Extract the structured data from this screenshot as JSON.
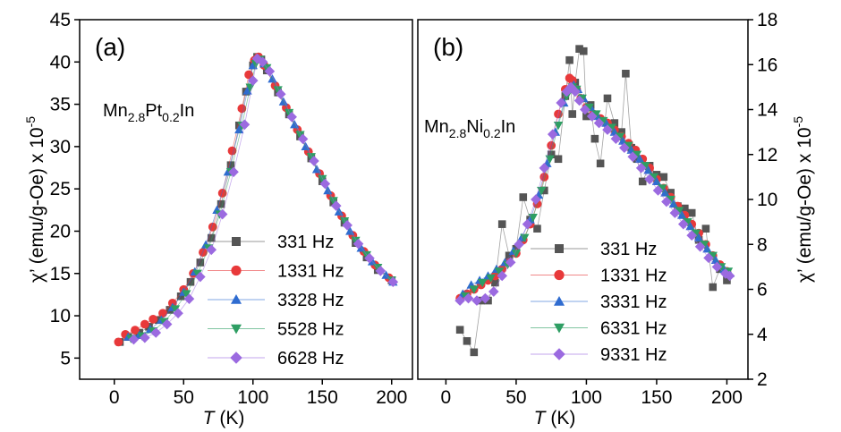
{
  "chart_data": [
    {
      "type": "scatter",
      "panel_label": "(a)",
      "sample": {
        "base1": "Mn",
        "sub1": "2.8",
        "base2": "Pt",
        "sub2": "0.2",
        "base3": "In"
      },
      "xlabel": {
        "symbol": "T",
        "unit": " (K)"
      },
      "ylabel": {
        "prefix": "χ’ (emu/g-Oe) x 10",
        "exponent": "-5"
      },
      "xlim": [
        -25,
        215
      ],
      "ylim": [
        2.5,
        45
      ],
      "xticks": [
        0,
        50,
        100,
        150,
        200
      ],
      "yticks": [
        5,
        10,
        15,
        20,
        25,
        30,
        35,
        40,
        45
      ],
      "legend_position": "bottom-right",
      "series": [
        {
          "name": "331 Hz",
          "marker": "square",
          "color": "#555555",
          "x": [
            4,
            10,
            18,
            25,
            32,
            40,
            48,
            55,
            62,
            70,
            77,
            84,
            90,
            95,
            100,
            103,
            106,
            110,
            118,
            126,
            134,
            142,
            150,
            158,
            166,
            174,
            182,
            190,
            200
          ],
          "y": [
            6.9,
            7.5,
            8.0,
            8.7,
            9.5,
            10.7,
            12.3,
            14.0,
            16.3,
            19.2,
            23.2,
            27.8,
            32.5,
            36.5,
            39.6,
            40.6,
            40.3,
            39.0,
            36.4,
            33.8,
            31.2,
            28.6,
            25.9,
            23.4,
            21.0,
            18.6,
            16.9,
            15.4,
            14.2
          ]
        },
        {
          "name": "1331 Hz",
          "marker": "circle",
          "color": "#e8393a",
          "x": [
            3,
            8,
            15,
            22,
            28,
            35,
            42,
            50,
            57,
            64,
            71,
            78,
            85,
            92,
            97,
            101,
            104,
            108,
            116,
            124,
            132,
            140,
            148,
            156,
            164,
            172,
            180,
            188,
            198
          ],
          "y": [
            6.9,
            7.8,
            8.3,
            9.0,
            9.6,
            10.3,
            11.5,
            13.1,
            15.0,
            17.5,
            20.5,
            24.5,
            29.5,
            34.5,
            38.5,
            40.2,
            40.6,
            39.6,
            37.2,
            34.6,
            32.0,
            29.4,
            26.8,
            24.2,
            21.8,
            19.5,
            17.6,
            16.0,
            14.5
          ]
        },
        {
          "name": "3328 Hz",
          "marker": "triangle-up",
          "color": "#2f6cd0",
          "x": [
            10,
            18,
            26,
            34,
            42,
            50,
            58,
            66,
            74,
            82,
            90,
            96,
            100,
            104,
            108,
            114,
            122,
            130,
            138,
            146,
            154,
            162,
            170,
            178,
            186,
            196,
            201
          ],
          "y": [
            7.5,
            7.7,
            8.4,
            9.5,
            11.0,
            12.8,
            15.2,
            18.4,
            22.5,
            27.0,
            32.0,
            36.6,
            39.6,
            40.4,
            39.8,
            38.0,
            35.3,
            32.6,
            30.0,
            27.3,
            24.8,
            22.3,
            20.0,
            18.0,
            16.4,
            14.8,
            14.0
          ]
        },
        {
          "name": "5528 Hz",
          "marker": "triangle-down",
          "color": "#2e9e63",
          "x": [
            12,
            20,
            28,
            36,
            44,
            52,
            60,
            68,
            76,
            84,
            92,
            98,
            102,
            105,
            110,
            118,
            126,
            134,
            142,
            150,
            158,
            166,
            174,
            182,
            190,
            200
          ],
          "y": [
            7.3,
            7.6,
            8.2,
            9.3,
            10.8,
            12.6,
            15.0,
            18.0,
            22.0,
            27.0,
            32.5,
            37.0,
            39.8,
            40.3,
            39.3,
            36.7,
            34.0,
            31.4,
            28.8,
            26.2,
            23.6,
            21.2,
            18.9,
            17.2,
            15.7,
            14.2
          ]
        },
        {
          "name": "6628 Hz",
          "marker": "diamond",
          "color": "#9b6ae0",
          "x": [
            14,
            22,
            30,
            38,
            46,
            54,
            62,
            70,
            78,
            86,
            94,
            100,
            103,
            107,
            112,
            120,
            128,
            136,
            144,
            152,
            160,
            168,
            176,
            184,
            192,
            201
          ],
          "y": [
            7.2,
            7.4,
            8.0,
            9.0,
            10.3,
            12.0,
            14.6,
            17.8,
            22.0,
            27.0,
            32.6,
            37.8,
            40.4,
            40.0,
            38.9,
            36.2,
            33.5,
            30.9,
            28.3,
            25.6,
            23.0,
            20.7,
            18.5,
            16.8,
            15.3,
            14.0
          ]
        }
      ]
    },
    {
      "type": "scatter",
      "panel_label": "(b)",
      "sample": {
        "base1": "Mn",
        "sub1": "2.8",
        "base2": "Ni",
        "sub2": "0.2",
        "base3": "In"
      },
      "xlabel": {
        "symbol": "T",
        "unit": " (K)"
      },
      "ylabel": {
        "prefix": "χ’ (emu/g-Oe) x 10",
        "exponent": "-5"
      },
      "xlim": [
        -20,
        215
      ],
      "ylim": [
        2,
        18
      ],
      "xticks": [
        0,
        50,
        100,
        150,
        200
      ],
      "yticks": [
        2,
        4,
        6,
        8,
        10,
        12,
        14,
        16,
        18
      ],
      "legend_position": "bottom-left",
      "series": [
        {
          "name": "331 Hz",
          "marker": "square",
          "color": "#555555",
          "x": [
            10,
            15,
            20,
            25,
            30,
            35,
            40,
            45,
            50,
            55,
            60,
            65,
            70,
            75,
            80,
            85,
            88,
            90,
            92,
            95,
            98,
            100,
            103,
            106,
            110,
            115,
            120,
            125,
            128,
            132,
            136,
            140,
            145,
            150,
            155,
            160,
            165,
            170,
            175,
            180,
            185,
            190,
            195,
            200
          ],
          "y": [
            4.2,
            3.7,
            3.2,
            5.5,
            5.5,
            6.3,
            8.9,
            7.5,
            7.8,
            10.1,
            9.1,
            8.7,
            10.4,
            12.0,
            11.8,
            14.6,
            16.2,
            13.8,
            15.2,
            16.7,
            16.6,
            13.7,
            14.2,
            12.7,
            11.6,
            14.5,
            13.4,
            13.0,
            15.6,
            12.3,
            11.8,
            10.8,
            11.5,
            11.1,
            11.0,
            10.3,
            9.7,
            9.6,
            9.4,
            8.2,
            8.7,
            6.1,
            6.9,
            6.4
          ]
        },
        {
          "name": "1331 Hz",
          "marker": "circle",
          "color": "#e8393a",
          "x": [
            10,
            15,
            20,
            25,
            30,
            35,
            40,
            45,
            50,
            55,
            60,
            65,
            70,
            75,
            80,
            85,
            88,
            90,
            93,
            96,
            100,
            105,
            110,
            115,
            120,
            125,
            130,
            135,
            140,
            145,
            150,
            155,
            160,
            165,
            170,
            175,
            180,
            185,
            190,
            195,
            200
          ],
          "y": [
            5.6,
            5.8,
            6.0,
            6.2,
            6.4,
            6.6,
            6.9,
            7.2,
            7.6,
            8.2,
            8.9,
            9.8,
            11.0,
            12.4,
            13.8,
            14.9,
            15.4,
            15.3,
            14.9,
            14.5,
            14.1,
            13.8,
            13.6,
            13.4,
            13.1,
            12.8,
            12.5,
            12.2,
            11.8,
            11.4,
            10.9,
            10.5,
            10.1,
            9.7,
            9.3,
            8.9,
            8.5,
            8.0,
            7.5,
            7.1,
            6.8
          ]
        },
        {
          "name": "3331 Hz",
          "marker": "triangle-up",
          "color": "#2f6cd0",
          "x": [
            12,
            18,
            24,
            30,
            36,
            42,
            48,
            54,
            60,
            66,
            72,
            78,
            84,
            88,
            91,
            94,
            98,
            103,
            108,
            114,
            120,
            126,
            132,
            138,
            144,
            150,
            156,
            162,
            168,
            174,
            180,
            186,
            192,
            198,
            202
          ],
          "y": [
            5.8,
            6.2,
            6.4,
            6.6,
            6.9,
            7.2,
            7.7,
            8.3,
            9.1,
            10.2,
            11.6,
            13.0,
            14.3,
            14.9,
            15.1,
            14.9,
            14.5,
            14.1,
            13.7,
            13.4,
            13.0,
            12.6,
            12.2,
            11.8,
            11.3,
            10.8,
            10.3,
            9.8,
            9.3,
            8.8,
            8.3,
            7.8,
            7.3,
            6.9,
            6.7
          ]
        },
        {
          "name": "6331 Hz",
          "marker": "triangle-down",
          "color": "#2e9e63",
          "x": [
            14,
            20,
            26,
            32,
            38,
            44,
            50,
            56,
            62,
            68,
            74,
            80,
            86,
            90,
            93,
            97,
            102,
            107,
            112,
            118,
            124,
            130,
            136,
            142,
            148,
            154,
            160,
            166,
            172,
            178,
            184,
            190,
            196,
            201
          ],
          "y": [
            5.7,
            6.0,
            6.3,
            6.5,
            6.8,
            7.1,
            7.6,
            8.3,
            9.2,
            10.4,
            11.8,
            13.3,
            14.6,
            15.0,
            14.9,
            14.5,
            14.1,
            13.8,
            13.5,
            13.2,
            12.8,
            12.4,
            12.0,
            11.5,
            11.0,
            10.5,
            10.0,
            9.5,
            9.0,
            8.5,
            8.0,
            7.5,
            7.0,
            6.8
          ]
        },
        {
          "name": "9331 Hz",
          "marker": "diamond",
          "color": "#9b6ae0",
          "x": [
            10,
            16,
            22,
            28,
            34,
            40,
            46,
            52,
            58,
            64,
            70,
            76,
            82,
            86,
            89,
            92,
            95,
            99,
            104,
            109,
            115,
            121,
            127,
            133,
            139,
            145,
            151,
            157,
            163,
            169,
            175,
            181,
            187,
            193,
            199,
            202
          ],
          "y": [
            5.5,
            5.6,
            5.5,
            5.6,
            5.9,
            6.6,
            7.2,
            8.0,
            8.9,
            10.0,
            11.4,
            12.9,
            14.3,
            14.8,
            15.0,
            14.8,
            14.4,
            14.0,
            13.7,
            13.4,
            13.1,
            12.7,
            12.3,
            11.9,
            11.4,
            10.9,
            10.4,
            9.9,
            9.4,
            8.9,
            8.4,
            7.9,
            7.4,
            7.0,
            6.7,
            6.6
          ]
        }
      ]
    }
  ]
}
